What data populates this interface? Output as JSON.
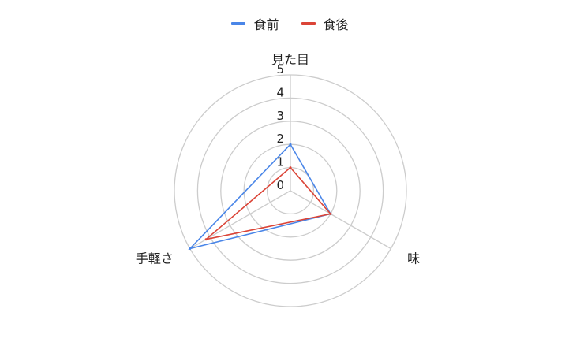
{
  "chart_data": {
    "type": "radar",
    "axes": [
      "見た目",
      "味",
      "手軽さ"
    ],
    "r_ticks": [
      "0",
      "1",
      "2",
      "3",
      "4",
      "5"
    ],
    "r_range": [
      0,
      5
    ],
    "grid": true,
    "legend_position": "top",
    "series": [
      {
        "name": "食前",
        "values": [
          2,
          2,
          5
        ],
        "color": "#4a86e8"
      },
      {
        "name": "食後",
        "values": [
          1,
          2,
          4.2
        ],
        "color": "#db4437"
      }
    ]
  }
}
